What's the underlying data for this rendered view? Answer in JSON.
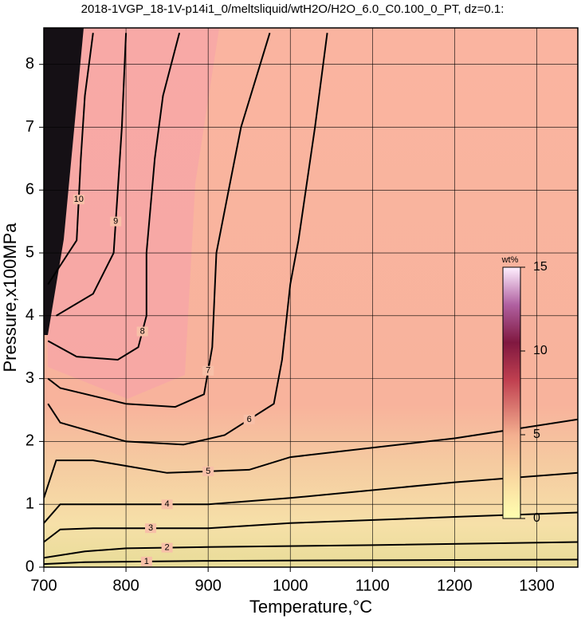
{
  "chart_data": {
    "type": "contour",
    "title": "2018-1VGP_18-1V-p14i1_0/meltsliquid/wtH2O/H2O_6.0_C0.100_0_PT, dz=0.1:",
    "x_label": "Temperature,°C",
    "y_label": "Pressure,x100MPa",
    "xlim": [
      700,
      1350
    ],
    "ylim": [
      0,
      8.58
    ],
    "xticks": [
      700,
      800,
      900,
      1000,
      1100,
      1200,
      1300
    ],
    "yticks": [
      0,
      1,
      2,
      3,
      4,
      5,
      6,
      7,
      8
    ],
    "grid": true,
    "contours": [
      {
        "level": 1,
        "x": [
          700,
          750,
          900,
          1350
        ],
        "y": [
          0.05,
          0.08,
          0.1,
          0.12
        ]
      },
      {
        "level": 2,
        "x": [
          700,
          750,
          800,
          900,
          1100,
          1350
        ],
        "y": [
          0.15,
          0.25,
          0.3,
          0.32,
          0.35,
          0.4
        ]
      },
      {
        "level": 3,
        "x": [
          700,
          720,
          760,
          900,
          1000,
          1200,
          1350
        ],
        "y": [
          0.4,
          0.6,
          0.62,
          0.62,
          0.7,
          0.8,
          0.87
        ]
      },
      {
        "level": 4,
        "x": [
          700,
          720,
          800,
          900,
          1000,
          1200,
          1350
        ],
        "y": [
          0.7,
          1.0,
          1.0,
          1.0,
          1.1,
          1.35,
          1.5
        ]
      },
      {
        "level": 5,
        "x": [
          700,
          715,
          760,
          850,
          950,
          1000,
          1200,
          1350
        ],
        "y": [
          1.1,
          1.7,
          1.7,
          1.5,
          1.55,
          1.75,
          2.05,
          2.35
        ]
      },
      {
        "level": 6,
        "x": [
          705,
          720,
          800,
          870,
          920,
          980,
          990,
          1000,
          1010,
          1030,
          1045
        ],
        "y": [
          2.6,
          2.3,
          2.0,
          1.95,
          2.1,
          2.6,
          3.3,
          4.5,
          5.2,
          7.0,
          8.5
        ]
      },
      {
        "level": 7,
        "x": [
          705,
          720,
          800,
          860,
          895,
          905,
          910,
          925,
          940,
          975
        ],
        "y": [
          3.0,
          2.85,
          2.6,
          2.55,
          2.75,
          3.5,
          5.0,
          6.0,
          7.0,
          8.5
        ]
      },
      {
        "level": 8,
        "x": [
          705,
          740,
          790,
          815,
          825,
          825,
          835,
          845,
          865
        ],
        "y": [
          3.6,
          3.35,
          3.3,
          3.5,
          4.0,
          5.0,
          6.5,
          7.5,
          8.5
        ]
      },
      {
        "level": 9,
        "x": [
          715,
          760,
          785,
          790,
          795,
          800
        ],
        "y": [
          4.0,
          4.35,
          5.0,
          6.0,
          7.0,
          8.5
        ]
      },
      {
        "level": 10,
        "x": [
          705,
          740,
          745,
          750,
          760
        ],
        "y": [
          4.5,
          5.2,
          6.5,
          7.5,
          8.5
        ]
      }
    ],
    "colorbar": {
      "label": "wt%",
      "lim": [
        0,
        15
      ],
      "ticks": [
        0,
        5,
        10,
        15
      ]
    }
  }
}
